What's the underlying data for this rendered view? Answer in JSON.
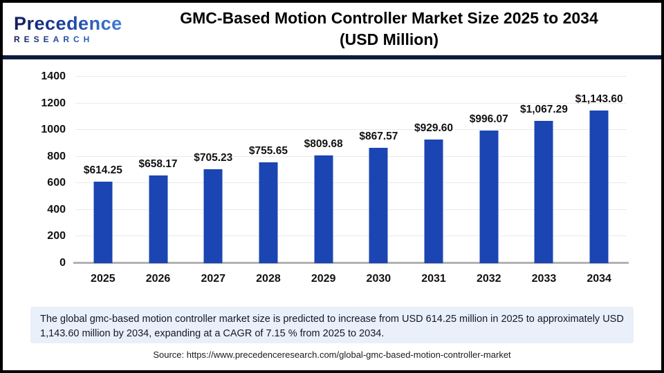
{
  "header": {
    "logo_name": "Precedence",
    "logo_sub": "RESEARCH",
    "title_line1": "GMC-Based Motion Controller Market Size 2025 to 2034",
    "title_line2": "(USD Million)"
  },
  "chart_data": {
    "type": "bar",
    "title": "GMC-Based Motion Controller Market Size 2025 to 2034 (USD Million)",
    "categories": [
      "2025",
      "2026",
      "2027",
      "2028",
      "2029",
      "2030",
      "2031",
      "2032",
      "2033",
      "2034"
    ],
    "values": [
      614.25,
      658.17,
      705.23,
      755.65,
      809.68,
      867.57,
      929.6,
      996.07,
      1067.29,
      1143.6
    ],
    "value_labels": [
      "$614.25",
      "$658.17",
      "$705.23",
      "$755.65",
      "$809.68",
      "$867.57",
      "$929.60",
      "$996.07",
      "$1,067.29",
      "$1,143.60"
    ],
    "yticks": [
      0,
      200,
      400,
      600,
      800,
      1000,
      1200,
      1400
    ],
    "ylim": [
      0,
      1400
    ],
    "xlabel": "",
    "ylabel": "",
    "grid": true,
    "legend": false,
    "bar_color": "#1b45b2"
  },
  "summary": {
    "text": "The global gmc-based motion controller market  size is predicted to increase from USD 614.25 million in 2025 to approximately USD 1,143.60 million by 2034, expanding at a CAGR of 7.15 % from 2025 to 2034."
  },
  "source": {
    "text": "Source: https://www.precedenceresearch.com/global-gmc-based-motion-controller-market"
  },
  "colors": {
    "bar": "#1b45b2",
    "divider": "#0e1a40",
    "summary_bg": "#e9f0fa",
    "gridline": "#e9e9e9",
    "axis": "#b1b1b1"
  }
}
